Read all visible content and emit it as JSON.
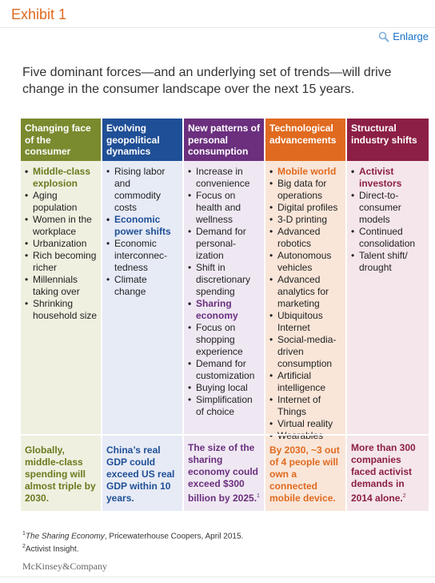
{
  "exhibit_label": "Exhibit 1",
  "enlarge_label": "Enlarge",
  "headline": "Five dominant forces—and an underlying set of trends—will drive change in the consumer landscape over the next 15 years.",
  "columns": [
    {
      "title": "Changing face of the consumer",
      "color": "#7a8a2e",
      "accent": "#6b7a1f",
      "items": [
        {
          "text": "Middle-class explosion",
          "highlight": true
        },
        {
          "text": "Aging population",
          "highlight": false
        },
        {
          "text": "Women in the workplace",
          "highlight": false
        },
        {
          "text": "Urbanization",
          "highlight": false
        },
        {
          "text": "Rich becoming richer",
          "highlight": false
        },
        {
          "text": "Millennials taking over",
          "highlight": false
        },
        {
          "text": "Shrinking household size",
          "highlight": false
        }
      ],
      "footer": "Globally, middle-class spending will almost triple by 2030.",
      "footnote_mark": ""
    },
    {
      "title": "Evolving geopolitical dynamics",
      "color": "#1f4f96",
      "accent": "#1f4f96",
      "items": [
        {
          "text": "Rising labor and commodity costs",
          "highlight": false
        },
        {
          "text": "Economic power shifts",
          "highlight": true
        },
        {
          "text": "Economic interconnec-tedness",
          "highlight": false
        },
        {
          "text": "Climate change",
          "highlight": false
        }
      ],
      "footer": "China’s real GDP could exceed US real GDP within 10 years.",
      "footnote_mark": ""
    },
    {
      "title": "New patterns of personal consumption",
      "color": "#6b2f7e",
      "accent": "#6b2f7e",
      "items": [
        {
          "text": "Increase in convenience",
          "highlight": false
        },
        {
          "text": "Focus on health and wellness",
          "highlight": false
        },
        {
          "text": "Demand for personal-ization",
          "highlight": false
        },
        {
          "text": "Shift in discretionary spending",
          "highlight": false
        },
        {
          "text": "Sharing economy",
          "highlight": true
        },
        {
          "text": "Focus on shopping experience",
          "highlight": false
        },
        {
          "text": "Demand for customization",
          "highlight": false
        },
        {
          "text": "Buying local",
          "highlight": false
        },
        {
          "text": "Simplification of choice",
          "highlight": false
        }
      ],
      "footer": "The size of the sharing economy could exceed $300 billion by 2025.",
      "footnote_mark": "1"
    },
    {
      "title": "Technological advancements",
      "color": "#e06a1f",
      "accent": "#e06a1f",
      "items": [
        {
          "text": "Mobile world",
          "highlight": true
        },
        {
          "text": "Big data for operations",
          "highlight": false
        },
        {
          "text": "Digital profiles",
          "highlight": false
        },
        {
          "text": "3-D printing",
          "highlight": false
        },
        {
          "text": "Advanced robotics",
          "highlight": false
        },
        {
          "text": "Autonomous vehicles",
          "highlight": false
        },
        {
          "text": "Advanced analytics for marketing",
          "highlight": false
        },
        {
          "text": "Ubiquitous Internet",
          "highlight": false
        },
        {
          "text": "Social-media-driven consumption",
          "highlight": false
        },
        {
          "text": "Artificial intelligence",
          "highlight": false
        },
        {
          "text": "Internet of Things",
          "highlight": false
        },
        {
          "text": "Virtual reality",
          "highlight": false
        },
        {
          "text": "Wearables",
          "highlight": false
        }
      ],
      "footer": "By 2030, ~3 out of 4 people will own a connected mobile device.",
      "footnote_mark": ""
    },
    {
      "title": "Structural industry shifts",
      "color": "#8c1f45",
      "accent": "#8c1f45",
      "items": [
        {
          "text": "Activist investors",
          "highlight": true
        },
        {
          "text": "Direct-to-consumer models",
          "highlight": false
        },
        {
          "text": "Continued consolidation",
          "highlight": false
        },
        {
          "text": "Talent shift/ drought",
          "highlight": false
        }
      ],
      "footer": "More than 300 companies faced activist demands in 2014 alone.",
      "footnote_mark": "2"
    }
  ],
  "footnotes": [
    {
      "mark": "1",
      "title": "The Sharing Economy",
      "rest": ", Pricewaterhouse Coopers, April 2015."
    },
    {
      "mark": "2",
      "title": "",
      "rest": "Activist Insight."
    }
  ],
  "brand": "McKinsey&Company"
}
